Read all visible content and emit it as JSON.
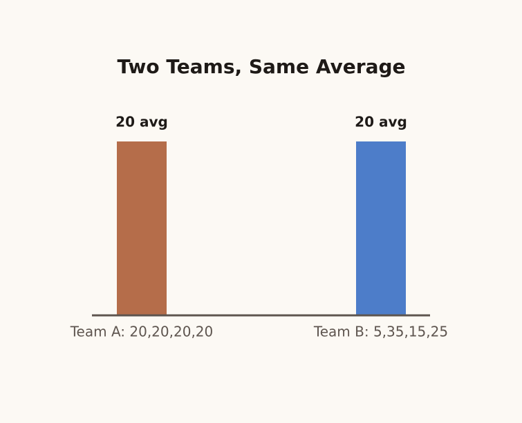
{
  "chart_data": {
    "type": "bar",
    "title": "Two Teams, Same Average",
    "categories": [
      "Team A: 20,20,20,20",
      "Team B: 5,35,15,25"
    ],
    "values": [
      20,
      20
    ],
    "value_labels": [
      "20 avg",
      "20 avg"
    ],
    "colors": [
      "#b56d4a",
      "#4d7dc9"
    ],
    "ylim": [
      0,
      20
    ]
  }
}
